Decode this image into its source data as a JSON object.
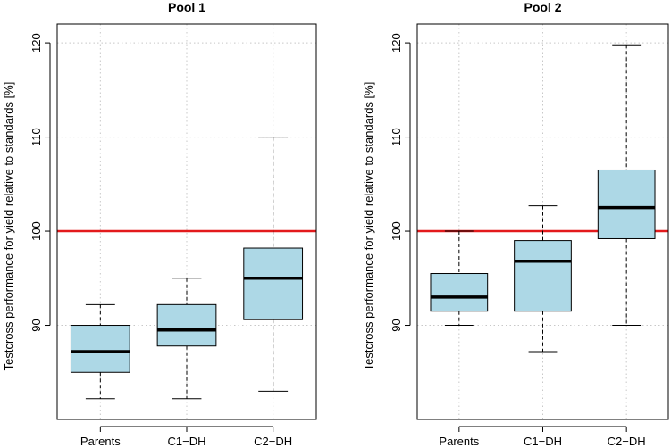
{
  "chart_data": [
    {
      "type": "boxplot",
      "title": "Pool 1",
      "ylabel": "Testcross performance for yield relative to standards [%]",
      "xlabel": "",
      "categories": [
        "Parents",
        "C1−DH",
        "C2−DH"
      ],
      "ylim": [
        80,
        122
      ],
      "yticks": [
        90,
        100,
        110,
        120
      ],
      "reference_line": 100,
      "reference_color": "#e31a1c",
      "box_color": "#add8e6",
      "grid": true,
      "boxes": [
        {
          "min": 82.2,
          "q1": 85.0,
          "median": 87.2,
          "q3": 90.0,
          "max": 92.2
        },
        {
          "min": 82.2,
          "q1": 87.8,
          "median": 89.5,
          "q3": 92.2,
          "max": 95.0
        },
        {
          "min": 83.0,
          "q1": 90.6,
          "median": 95.0,
          "q3": 98.2,
          "max": 110.0
        }
      ]
    },
    {
      "type": "boxplot",
      "title": "Pool 2",
      "ylabel": "Testcross performance for yield relative to standards [%]",
      "xlabel": "",
      "categories": [
        "Parents",
        "C1−DH",
        "C2−DH"
      ],
      "ylim": [
        80,
        122
      ],
      "yticks": [
        90,
        100,
        110,
        120
      ],
      "reference_line": 100,
      "reference_color": "#e31a1c",
      "box_color": "#add8e6",
      "grid": true,
      "boxes": [
        {
          "min": 90.0,
          "q1": 91.5,
          "median": 93.0,
          "q3": 95.5,
          "max": 100.0
        },
        {
          "min": 87.2,
          "q1": 91.5,
          "median": 96.8,
          "q3": 99.0,
          "max": 102.7
        },
        {
          "min": 90.0,
          "q1": 99.2,
          "median": 102.5,
          "q3": 106.5,
          "max": 119.8
        }
      ]
    }
  ]
}
